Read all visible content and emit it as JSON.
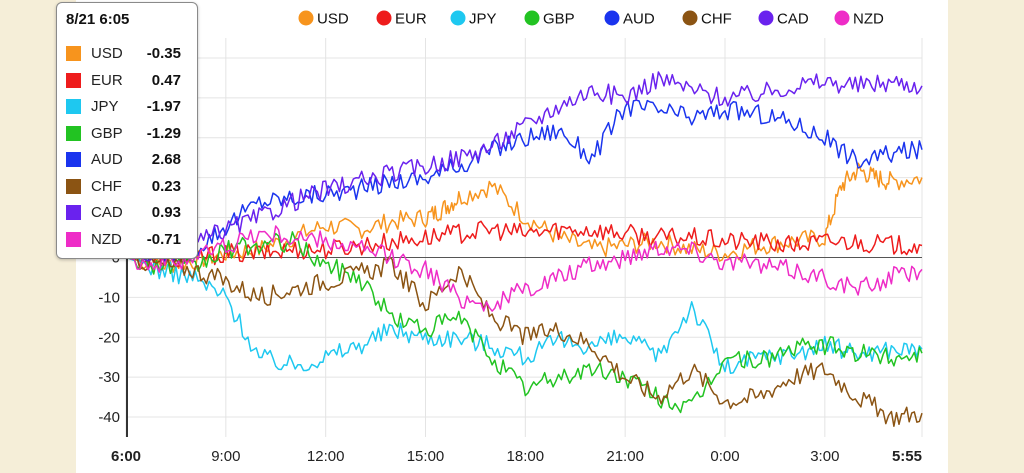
{
  "chart_data": {
    "type": "line",
    "title": "",
    "xlabel": "",
    "ylabel": "",
    "x_ticks": [
      "6:00",
      "9:00",
      "12:00",
      "15:00",
      "18:00",
      "21:00",
      "0:00",
      "3:00",
      "5:55"
    ],
    "x_tick_hours": [
      0,
      3,
      6,
      9,
      12,
      15,
      18,
      21,
      23.92
    ],
    "y_ticks": [
      -40,
      -30,
      -20,
      -10,
      0,
      10,
      20,
      30,
      40,
      50
    ],
    "ylim": [
      -45,
      55
    ],
    "xlim": [
      0,
      23.92
    ],
    "grid": true,
    "legend_position": "top",
    "series": [
      {
        "name": "USD",
        "color": "#f7941d",
        "x": [
          0,
          1,
          2,
          3,
          4,
          5,
          6,
          7,
          8,
          9,
          9.5,
          10,
          11,
          12,
          13,
          14,
          15,
          16,
          17,
          18,
          19,
          20,
          21,
          21.5,
          22,
          22.5,
          23,
          23.92
        ],
        "values": [
          0,
          -2,
          -1,
          1,
          2,
          5,
          8,
          7,
          9,
          10,
          12,
          15,
          18,
          10,
          5,
          2,
          3,
          4,
          2,
          1,
          3,
          4,
          5,
          18,
          22,
          20,
          19,
          20
        ]
      },
      {
        "name": "EUR",
        "color": "#ee1c1c",
        "x": [
          0,
          1,
          2,
          3,
          4,
          5,
          6,
          7,
          8,
          9,
          10,
          11,
          12,
          13,
          14,
          15,
          16,
          17,
          18,
          19,
          20,
          21,
          22,
          23,
          23.92
        ],
        "values": [
          0,
          -1,
          0,
          1,
          1,
          2,
          2,
          3,
          4,
          5,
          6,
          7,
          6,
          7,
          7,
          6,
          5,
          5,
          4,
          4,
          3,
          4,
          4,
          3,
          3
        ]
      },
      {
        "name": "JPY",
        "color": "#1ec8f0",
        "x": [
          0,
          1,
          2,
          3,
          4,
          5,
          6,
          7,
          8,
          9,
          10,
          11,
          12,
          13,
          14,
          15,
          16,
          17,
          18,
          19,
          20,
          21,
          22,
          23,
          23.92
        ],
        "values": [
          0,
          -3,
          -5,
          -10,
          -25,
          -27,
          -25,
          -22,
          -18,
          -20,
          -20,
          -22,
          -25,
          -21,
          -22,
          -20,
          -25,
          -12,
          -28,
          -25,
          -24,
          -22,
          -24,
          -23,
          -23
        ]
      },
      {
        "name": "GBP",
        "color": "#22c322",
        "x": [
          0,
          1,
          2,
          3,
          4,
          5,
          6,
          7,
          8,
          9,
          10,
          11,
          12,
          13,
          14,
          15,
          16,
          17,
          18,
          19,
          20,
          21,
          22,
          23,
          23.92
        ],
        "values": [
          0,
          -2,
          -3,
          2,
          3,
          4,
          -2,
          -5,
          -15,
          -18,
          -15,
          -25,
          -33,
          -30,
          -28,
          -30,
          -35,
          -38,
          -25,
          -26,
          -23,
          -22,
          -24,
          -25,
          -24
        ]
      },
      {
        "name": "AUD",
        "color": "#1a34ee",
        "x": [
          0,
          1,
          2,
          3,
          4,
          5,
          6,
          7,
          8,
          9,
          10,
          11,
          12,
          13,
          14,
          15,
          16,
          17,
          18,
          19,
          20,
          21,
          22,
          23,
          23.92
        ],
        "values": [
          0,
          1,
          2,
          8,
          14,
          15,
          16,
          17,
          19,
          20,
          23,
          27,
          30,
          32,
          25,
          38,
          37,
          35,
          37,
          36,
          34,
          30,
          24,
          26,
          27
        ]
      },
      {
        "name": "CHF",
        "color": "#8b5413",
        "x": [
          0,
          1,
          2,
          3,
          4,
          5,
          6,
          7,
          8,
          9,
          10,
          11,
          12,
          13,
          14,
          15,
          16,
          17,
          18,
          19,
          20,
          21,
          22,
          23,
          23.92
        ],
        "values": [
          0,
          -2,
          -3,
          -6,
          -10,
          -8,
          -6,
          -4,
          -2,
          -12,
          -3,
          -15,
          -20,
          -18,
          -22,
          -30,
          -35,
          -28,
          -36,
          -35,
          -30,
          -28,
          -35,
          -40,
          -39
        ]
      },
      {
        "name": "CAD",
        "color": "#6a22ee",
        "x": [
          0,
          1,
          2,
          3,
          4,
          5,
          6,
          7,
          8,
          9,
          10,
          11,
          12,
          13,
          14,
          15,
          16,
          17,
          18,
          19,
          20,
          21,
          22,
          23,
          23.92
        ],
        "values": [
          0,
          1,
          3,
          7,
          10,
          14,
          17,
          19,
          21,
          23,
          25,
          28,
          33,
          38,
          42,
          40,
          45,
          42,
          40,
          41,
          43,
          44,
          43,
          44,
          43
        ]
      },
      {
        "name": "NZD",
        "color": "#ee2cc7",
        "x": [
          0,
          1,
          2,
          3,
          4,
          5,
          6,
          7,
          8,
          9,
          10,
          11,
          12,
          13,
          14,
          15,
          16,
          17,
          18,
          19,
          20,
          21,
          22,
          23,
          23.92
        ],
        "values": [
          0,
          -2,
          0,
          3,
          6,
          5,
          4,
          2,
          0,
          -3,
          -10,
          -12,
          -8,
          -5,
          -2,
          0,
          3,
          2,
          -1,
          -2,
          -3,
          -5,
          -8,
          -5,
          -3
        ]
      }
    ]
  },
  "tooltip": {
    "title": "8/21 6:05",
    "rows": [
      {
        "name": "USD",
        "value": "-0.35",
        "color": "#f7941d"
      },
      {
        "name": "EUR",
        "value": "0.47",
        "color": "#ee1c1c"
      },
      {
        "name": "JPY",
        "value": "-1.97",
        "color": "#1ec8f0"
      },
      {
        "name": "GBP",
        "value": "-1.29",
        "color": "#22c322"
      },
      {
        "name": "AUD",
        "value": "2.68",
        "color": "#1a34ee"
      },
      {
        "name": "CHF",
        "value": "0.23",
        "color": "#8b5413"
      },
      {
        "name": "CAD",
        "value": "0.93",
        "color": "#6a22ee"
      },
      {
        "name": "NZD",
        "value": "-0.71",
        "color": "#ee2cc7"
      }
    ]
  }
}
